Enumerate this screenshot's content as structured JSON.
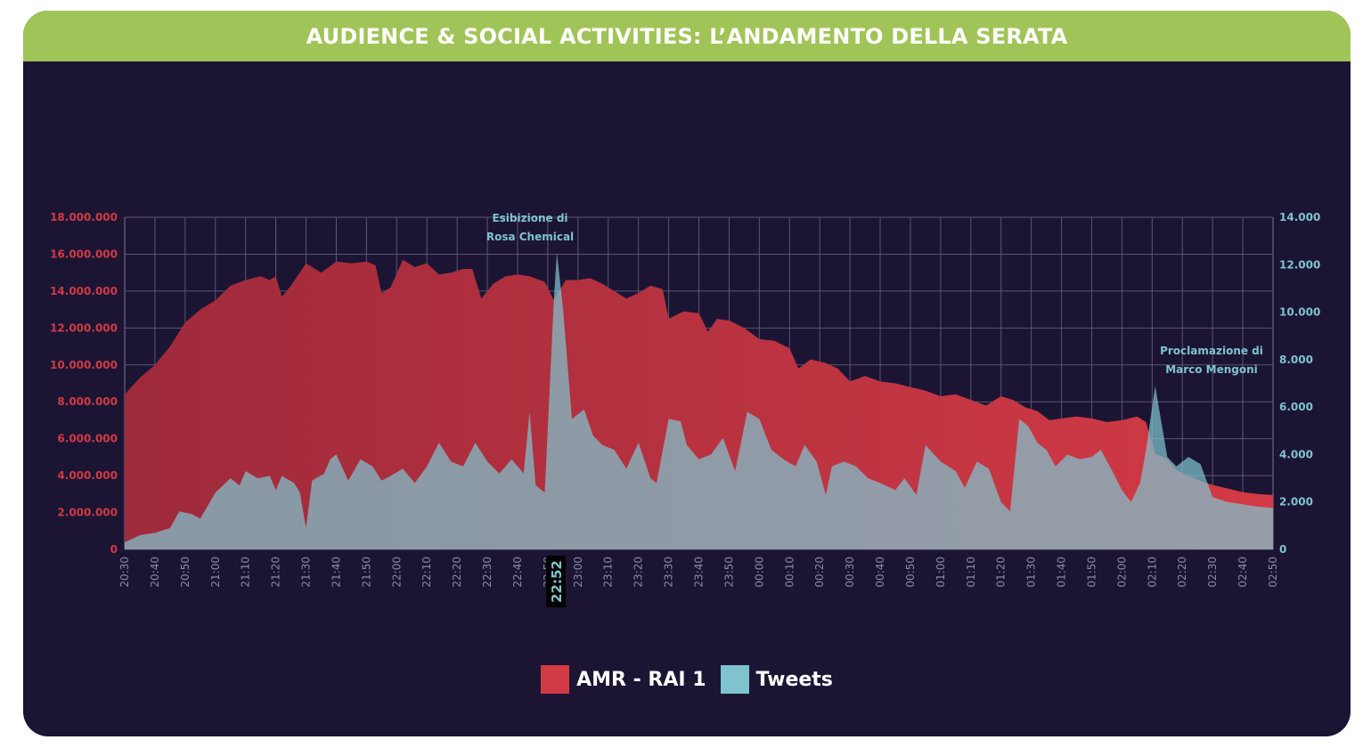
{
  "header": {
    "title": "AUDIENCE & SOCIAL ACTIVITIES: L’ANDAMENTO DELLA SERATA"
  },
  "colors": {
    "panel_bg": "#1b1533",
    "header_bg": "#a1c458",
    "amr": "#d23a45",
    "tweets": "#7fc3cf",
    "left_axis_text": "#d23a45",
    "right_axis_text": "#7fc3cf",
    "grid": "#5b5670",
    "tick_text": "#8e8aa0"
  },
  "annotations": {
    "rosa": {
      "line1": "Esibizione di",
      "line2": "Rosa Chemical",
      "time": "22:52"
    },
    "mengoni": {
      "line1": "Proclamazione di",
      "line2": "Marco Mengoni"
    }
  },
  "legend": [
    {
      "label": "AMR - RAI 1",
      "color": "#d23a45"
    },
    {
      "label": "Tweets",
      "color": "#7fc3cf"
    }
  ],
  "chart_data": {
    "type": "area",
    "title": "AUDIENCE & SOCIAL ACTIVITIES: L’ANDAMENTO DELLA SERATA",
    "x_unit": "minutes from 20:30",
    "x_range": [
      0,
      380
    ],
    "x_ticks": [
      "20:30",
      "20:40",
      "20:50",
      "21:00",
      "21:10",
      "21:20",
      "21:30",
      "21:40",
      "21:50",
      "22:00",
      "22:10",
      "22:20",
      "22:30",
      "22:40",
      "22:50",
      "23:00",
      "23:10",
      "23:20",
      "23:30",
      "23:40",
      "23:50",
      "00:00",
      "00:10",
      "00:20",
      "00:30",
      "00:40",
      "00:50",
      "01:00",
      "01:10",
      "01:20",
      "01:30",
      "01:40",
      "01:50",
      "02:00",
      "02:10",
      "02:20",
      "02:30",
      "02:40",
      "02:50"
    ],
    "y_left": {
      "range": [
        0,
        18000000
      ],
      "ticks": [
        "0",
        "2.000.000",
        "4.000.000",
        "6.000.000",
        "8.000.000",
        "10.000.000",
        "12.000.000",
        "14.000.000",
        "16.000.000",
        "18.000.000"
      ]
    },
    "y_right": {
      "range": [
        0,
        14000
      ],
      "ticks": [
        "0",
        "2.000",
        "4.000",
        "6.000",
        "8.000",
        "10.000",
        "12.000",
        "14.000"
      ]
    },
    "grid": true,
    "legend_position": "bottom-center",
    "series": [
      {
        "name": "AMR - RAI 1",
        "axis": "left",
        "points": [
          [
            0,
            8400000
          ],
          [
            5,
            9300000
          ],
          [
            10,
            10000000
          ],
          [
            15,
            11000000
          ],
          [
            20,
            12300000
          ],
          [
            25,
            13000000
          ],
          [
            30,
            13500000
          ],
          [
            35,
            14300000
          ],
          [
            40,
            14600000
          ],
          [
            45,
            14800000
          ],
          [
            48,
            14600000
          ],
          [
            50,
            14800000
          ],
          [
            52,
            13700000
          ],
          [
            55,
            14300000
          ],
          [
            60,
            15500000
          ],
          [
            65,
            15000000
          ],
          [
            70,
            15600000
          ],
          [
            75,
            15500000
          ],
          [
            80,
            15600000
          ],
          [
            83,
            15400000
          ],
          [
            85,
            13900000
          ],
          [
            88,
            14200000
          ],
          [
            92,
            15700000
          ],
          [
            96,
            15300000
          ],
          [
            100,
            15500000
          ],
          [
            104,
            14900000
          ],
          [
            108,
            15000000
          ],
          [
            112,
            15200000
          ],
          [
            115,
            15200000
          ],
          [
            118,
            13600000
          ],
          [
            122,
            14400000
          ],
          [
            126,
            14800000
          ],
          [
            130,
            14900000
          ],
          [
            134,
            14800000
          ],
          [
            139,
            14500000
          ],
          [
            142,
            13500000
          ],
          [
            146,
            14600000
          ],
          [
            150,
            14600000
          ],
          [
            154,
            14700000
          ],
          [
            158,
            14400000
          ],
          [
            162,
            14000000
          ],
          [
            166,
            13600000
          ],
          [
            170,
            13900000
          ],
          [
            174,
            14300000
          ],
          [
            178,
            14100000
          ],
          [
            180,
            12500000
          ],
          [
            185,
            12900000
          ],
          [
            190,
            12800000
          ],
          [
            193,
            11800000
          ],
          [
            196,
            12500000
          ],
          [
            200,
            12400000
          ],
          [
            205,
            12000000
          ],
          [
            210,
            11400000
          ],
          [
            215,
            11300000
          ],
          [
            220,
            10900000
          ],
          [
            223,
            9800000
          ],
          [
            227,
            10300000
          ],
          [
            232,
            10100000
          ],
          [
            236,
            9800000
          ],
          [
            240,
            9100000
          ],
          [
            245,
            9400000
          ],
          [
            250,
            9100000
          ],
          [
            255,
            9000000
          ],
          [
            260,
            8800000
          ],
          [
            265,
            8600000
          ],
          [
            270,
            8300000
          ],
          [
            275,
            8400000
          ],
          [
            280,
            8100000
          ],
          [
            285,
            7800000
          ],
          [
            290,
            8300000
          ],
          [
            294,
            8100000
          ],
          [
            298,
            7700000
          ],
          [
            302,
            7500000
          ],
          [
            306,
            7000000
          ],
          [
            310,
            7100000
          ],
          [
            315,
            7200000
          ],
          [
            320,
            7100000
          ],
          [
            325,
            6900000
          ],
          [
            330,
            7000000
          ],
          [
            335,
            7200000
          ],
          [
            338,
            6900000
          ],
          [
            341,
            5200000
          ],
          [
            345,
            4900000
          ],
          [
            348,
            4300000
          ],
          [
            352,
            4000000
          ],
          [
            356,
            3700000
          ],
          [
            360,
            3500000
          ],
          [
            365,
            3300000
          ],
          [
            370,
            3100000
          ],
          [
            375,
            3000000
          ],
          [
            380,
            2950000
          ]
        ]
      },
      {
        "name": "Tweets",
        "axis": "right",
        "points": [
          [
            0,
            300
          ],
          [
            5,
            600
          ],
          [
            10,
            700
          ],
          [
            15,
            900
          ],
          [
            18,
            1600
          ],
          [
            22,
            1500
          ],
          [
            25,
            1300
          ],
          [
            30,
            2400
          ],
          [
            35,
            3000
          ],
          [
            38,
            2700
          ],
          [
            40,
            3300
          ],
          [
            44,
            3000
          ],
          [
            48,
            3100
          ],
          [
            50,
            2500
          ],
          [
            52,
            3100
          ],
          [
            56,
            2800
          ],
          [
            58,
            2400
          ],
          [
            60,
            900
          ],
          [
            62,
            2900
          ],
          [
            66,
            3200
          ],
          [
            68,
            3800
          ],
          [
            70,
            4000
          ],
          [
            74,
            2900
          ],
          [
            78,
            3800
          ],
          [
            82,
            3500
          ],
          [
            85,
            2900
          ],
          [
            88,
            3100
          ],
          [
            92,
            3400
          ],
          [
            96,
            2800
          ],
          [
            100,
            3500
          ],
          [
            104,
            4500
          ],
          [
            108,
            3700
          ],
          [
            112,
            3500
          ],
          [
            116,
            4500
          ],
          [
            120,
            3700
          ],
          [
            124,
            3200
          ],
          [
            128,
            3800
          ],
          [
            132,
            3200
          ],
          [
            134,
            5800
          ],
          [
            136,
            2700
          ],
          [
            139,
            2400
          ],
          [
            142,
            10500
          ],
          [
            143,
            12500
          ],
          [
            145,
            10200
          ],
          [
            148,
            5500
          ],
          [
            152,
            5900
          ],
          [
            155,
            4800
          ],
          [
            158,
            4400
          ],
          [
            162,
            4200
          ],
          [
            166,
            3400
          ],
          [
            170,
            4500
          ],
          [
            174,
            3000
          ],
          [
            176,
            2800
          ],
          [
            180,
            5500
          ],
          [
            184,
            5400
          ],
          [
            186,
            4400
          ],
          [
            190,
            3800
          ],
          [
            194,
            4000
          ],
          [
            198,
            4700
          ],
          [
            202,
            3300
          ],
          [
            206,
            5800
          ],
          [
            210,
            5500
          ],
          [
            214,
            4200
          ],
          [
            218,
            3800
          ],
          [
            222,
            3500
          ],
          [
            225,
            4400
          ],
          [
            229,
            3700
          ],
          [
            232,
            2300
          ],
          [
            234,
            3500
          ],
          [
            238,
            3700
          ],
          [
            242,
            3500
          ],
          [
            246,
            3000
          ],
          [
            250,
            2800
          ],
          [
            255,
            2500
          ],
          [
            258,
            3000
          ],
          [
            262,
            2300
          ],
          [
            265,
            4400
          ],
          [
            270,
            3700
          ],
          [
            275,
            3300
          ],
          [
            278,
            2600
          ],
          [
            282,
            3700
          ],
          [
            286,
            3400
          ],
          [
            290,
            2000
          ],
          [
            293,
            1600
          ],
          [
            296,
            5500
          ],
          [
            299,
            5200
          ],
          [
            302,
            4500
          ],
          [
            305,
            4200
          ],
          [
            308,
            3500
          ],
          [
            312,
            4000
          ],
          [
            316,
            3800
          ],
          [
            320,
            3900
          ],
          [
            323,
            4200
          ],
          [
            326,
            3500
          ],
          [
            330,
            2500
          ],
          [
            333,
            2000
          ],
          [
            336,
            2800
          ],
          [
            338,
            4200
          ],
          [
            341,
            6900
          ],
          [
            345,
            3900
          ],
          [
            348,
            3500
          ],
          [
            352,
            3900
          ],
          [
            356,
            3600
          ],
          [
            360,
            2200
          ],
          [
            365,
            2000
          ],
          [
            370,
            1900
          ],
          [
            375,
            1800
          ],
          [
            380,
            1750
          ]
        ]
      }
    ]
  }
}
